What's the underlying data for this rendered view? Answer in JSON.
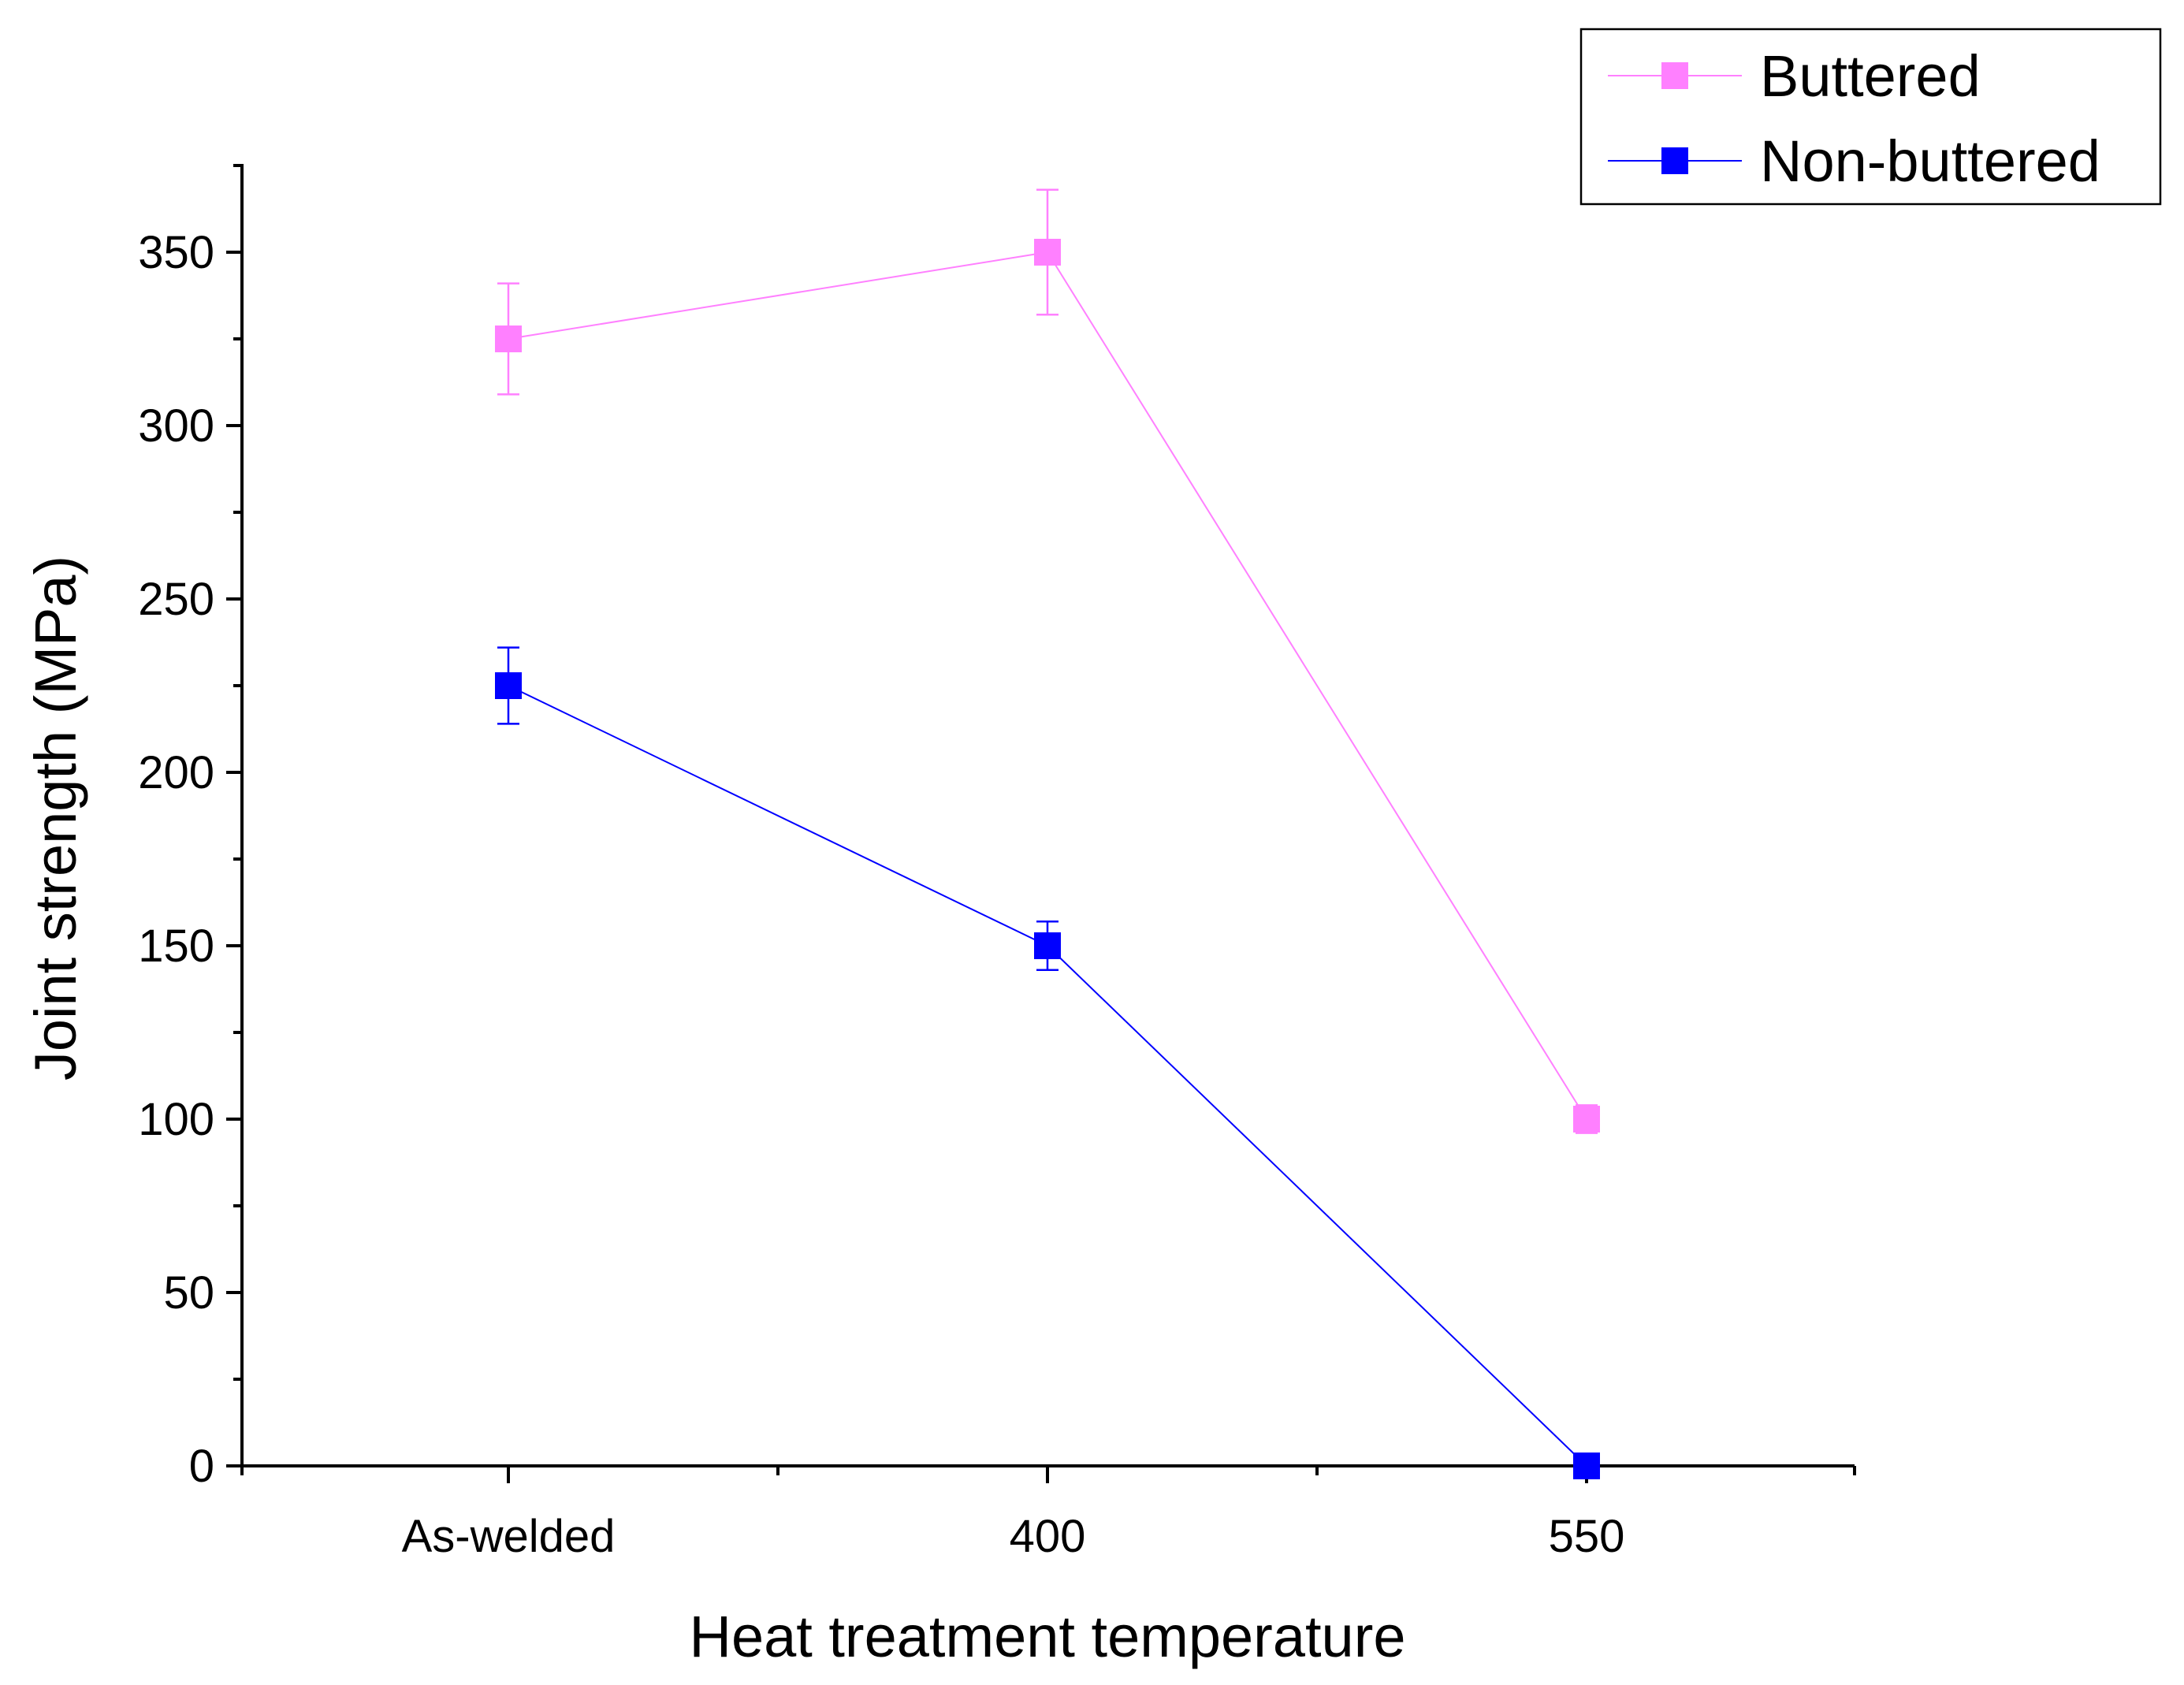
{
  "chart_data": {
    "type": "line",
    "title": "",
    "xlabel": "Heat treatment temperature",
    "ylabel": "Joint strength (MPa)",
    "categories": [
      "As-welded",
      "400",
      "550"
    ],
    "ylim": [
      0,
      375
    ],
    "yticks": [
      0,
      50,
      100,
      150,
      200,
      250,
      300,
      350
    ],
    "grid": false,
    "legend_position": "top-right",
    "series": [
      {
        "name": "Buttered",
        "color": "#ff80ff",
        "values": [
          325,
          350,
          100
        ],
        "errors": [
          16,
          18,
          4
        ],
        "marker": "square",
        "line_segments": [
          [
            0,
            1
          ],
          [
            1,
            2
          ]
        ]
      },
      {
        "name": "Non-buttered",
        "color": "#0000ff",
        "values": [
          225,
          150,
          0
        ],
        "errors": [
          11,
          7,
          0
        ],
        "marker": "square",
        "line_segments": [
          [
            0,
            1
          ],
          [
            1,
            2
          ]
        ]
      }
    ]
  }
}
